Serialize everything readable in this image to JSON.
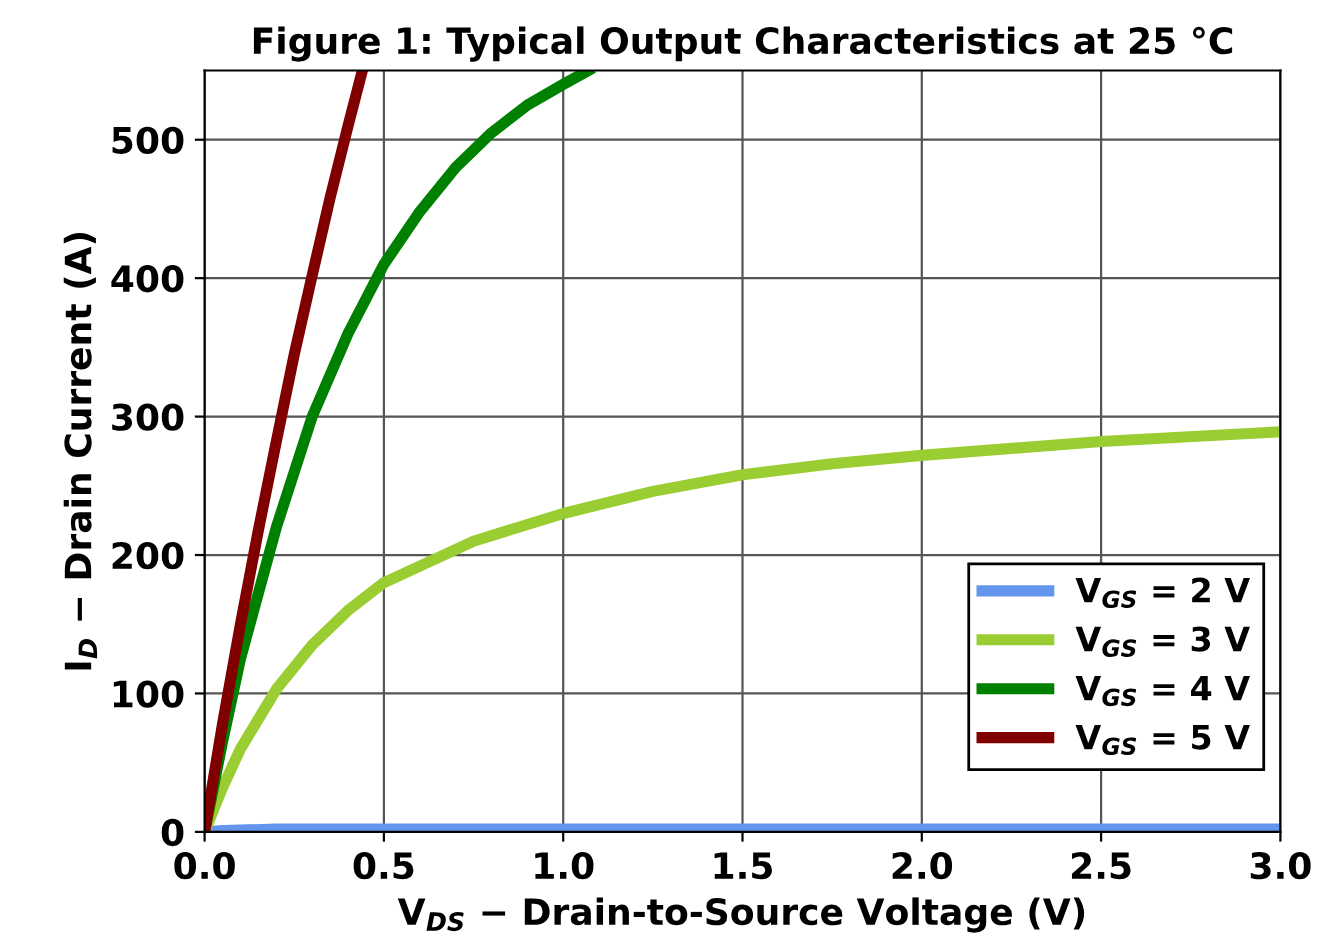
{
  "chart_data": {
    "type": "line",
    "title": "Figure 1: Typical Output Characteristics at 25 °C",
    "xlabel": "V$_{DS}$ − Drain-to-Source Voltage (V)",
    "ylabel": "I$_{D}$ − Drain Current (A)",
    "xlim": [
      0,
      3
    ],
    "ylim": [
      0,
      550
    ],
    "xticks": [
      {
        "value": 0,
        "label": "0.0"
      },
      {
        "value": 0.5,
        "label": "0.5"
      },
      {
        "value": 1,
        "label": "1.0"
      },
      {
        "value": 1.5,
        "label": "1.5"
      },
      {
        "value": 2,
        "label": "2.0"
      },
      {
        "value": 2.5,
        "label": "2.5"
      },
      {
        "value": 3,
        "label": "3.0"
      }
    ],
    "yticks": [
      0,
      100,
      200,
      300,
      400,
      500
    ],
    "grid": true,
    "legend": "bottom right",
    "marker": "none",
    "line_style": "solid",
    "series": [
      {
        "name": "V$_{GS}$ = 2 V",
        "color": "#6495ed",
        "x": [
          0,
          0.05,
          0.2,
          0.5,
          1,
          1.5,
          2,
          2.5,
          3
        ],
        "values": [
          0,
          1,
          2,
          2,
          2,
          2,
          2,
          2,
          2
        ]
      },
      {
        "name": "V$_{GS}$ = 3 V",
        "color": "#9acd32",
        "x": [
          0,
          0.05,
          0.1,
          0.2,
          0.3,
          0.4,
          0.5,
          0.75,
          1,
          1.25,
          1.5,
          1.75,
          2,
          2.5,
          3
        ],
        "values": [
          0,
          32,
          60,
          103,
          135,
          160,
          180,
          210,
          230,
          246,
          258,
          266,
          272,
          282,
          289
        ]
      },
      {
        "name": "V$_{GS}$ = 4 V",
        "color": "#008000",
        "x": [
          0,
          0.05,
          0.1,
          0.2,
          0.3,
          0.4,
          0.5,
          0.6,
          0.7,
          0.8,
          0.9,
          1.0,
          1.07
        ],
        "values": [
          0,
          65,
          125,
          220,
          300,
          360,
          410,
          448,
          480,
          505,
          525,
          540,
          550
        ]
      },
      {
        "name": "V$_{GS}$ = 5 V",
        "color": "#800000",
        "x": [
          0,
          0.05,
          0.1,
          0.15,
          0.2,
          0.25,
          0.3,
          0.35,
          0.4,
          0.44
        ],
        "values": [
          0,
          78,
          150,
          218,
          282,
          345,
          402,
          458,
          510,
          550
        ]
      }
    ]
  }
}
